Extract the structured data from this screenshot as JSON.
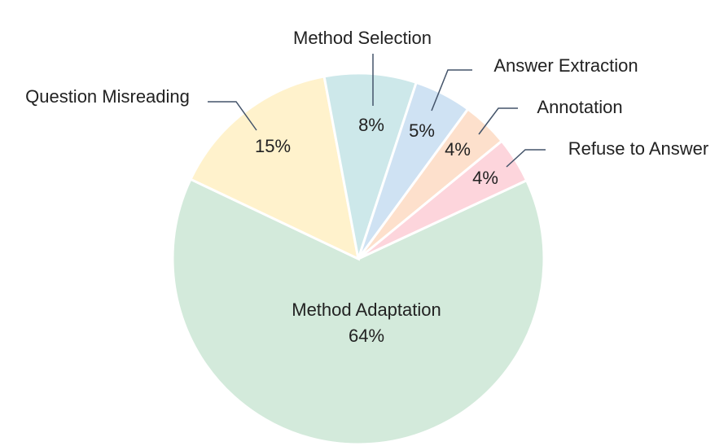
{
  "chart_data": {
    "type": "pie",
    "categories": [
      "Method Adaptation",
      "Question Misreading",
      "Method Selection",
      "Answer Extraction",
      "Annotation",
      "Refuse to Answer"
    ],
    "values": [
      64,
      15,
      8,
      5,
      4,
      4
    ],
    "value_labels": [
      "64%",
      "15%",
      "8%",
      "5%",
      "4%",
      "4%"
    ],
    "colors": [
      "#d3eadb",
      "#fff2cc",
      "#cde8ea",
      "#cfe2f3",
      "#fde0cc",
      "#fdd5dc"
    ]
  }
}
